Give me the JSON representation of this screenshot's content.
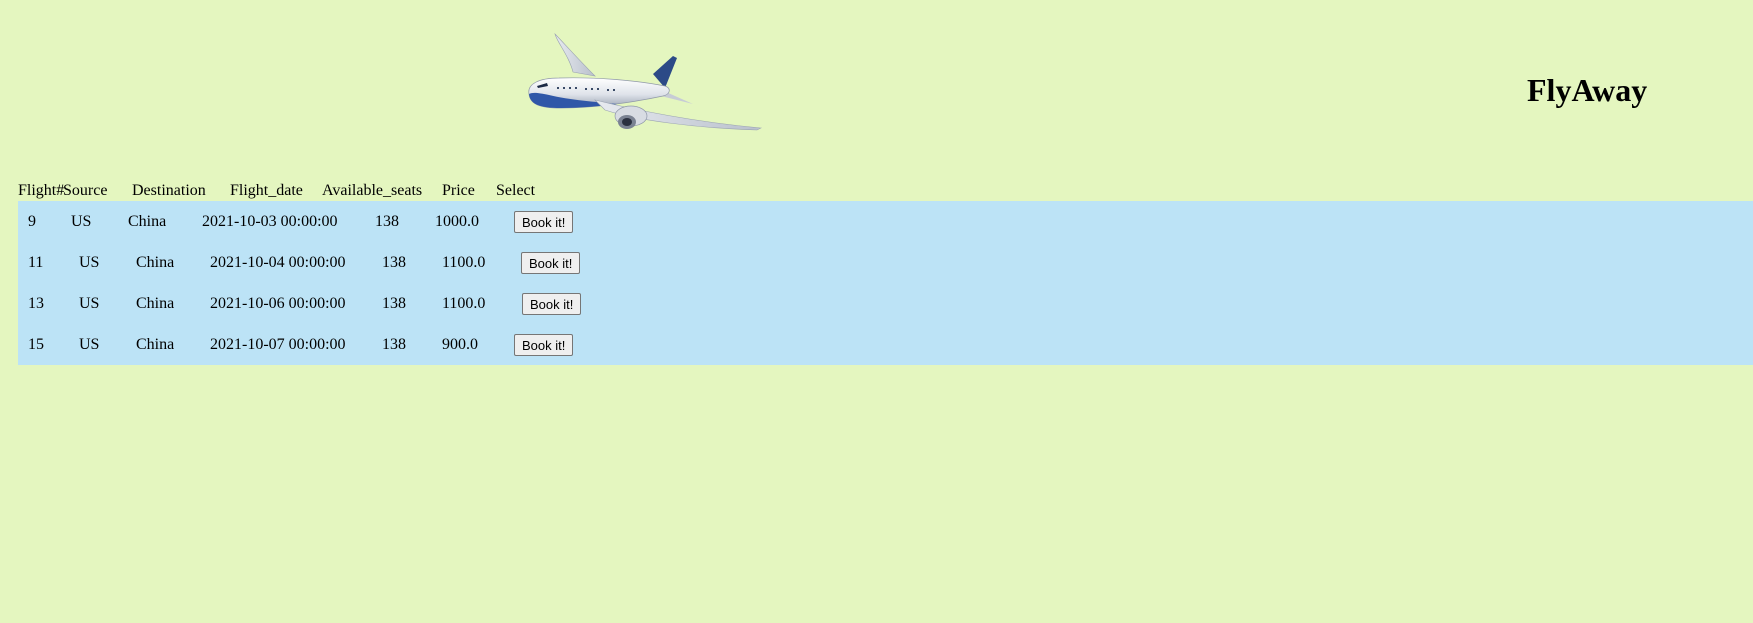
{
  "header": {
    "brand": "FlyAway"
  },
  "table": {
    "columns": [
      "Flight#",
      "Source",
      "Destination",
      "Flight_date",
      "Available_seats",
      "Price",
      "Select"
    ],
    "rows": [
      {
        "flight": "9",
        "source": "US",
        "destination": "China",
        "date": "2021-10-03 00:00:00",
        "seats": "138",
        "price": "1000.0",
        "action": "Book it!"
      },
      {
        "flight": "11",
        "source": "US",
        "destination": "China",
        "date": "2021-10-04 00:00:00",
        "seats": "138",
        "price": "1100.0",
        "action": "Book it!"
      },
      {
        "flight": "13",
        "source": "US",
        "destination": "China",
        "date": "2021-10-06 00:00:00",
        "seats": "138",
        "price": "1100.0",
        "action": "Book it!"
      },
      {
        "flight": "15",
        "source": "US",
        "destination": "China",
        "date": "2021-10-07 00:00:00",
        "seats": "138",
        "price": "900.0",
        "action": "Book it!"
      }
    ]
  }
}
